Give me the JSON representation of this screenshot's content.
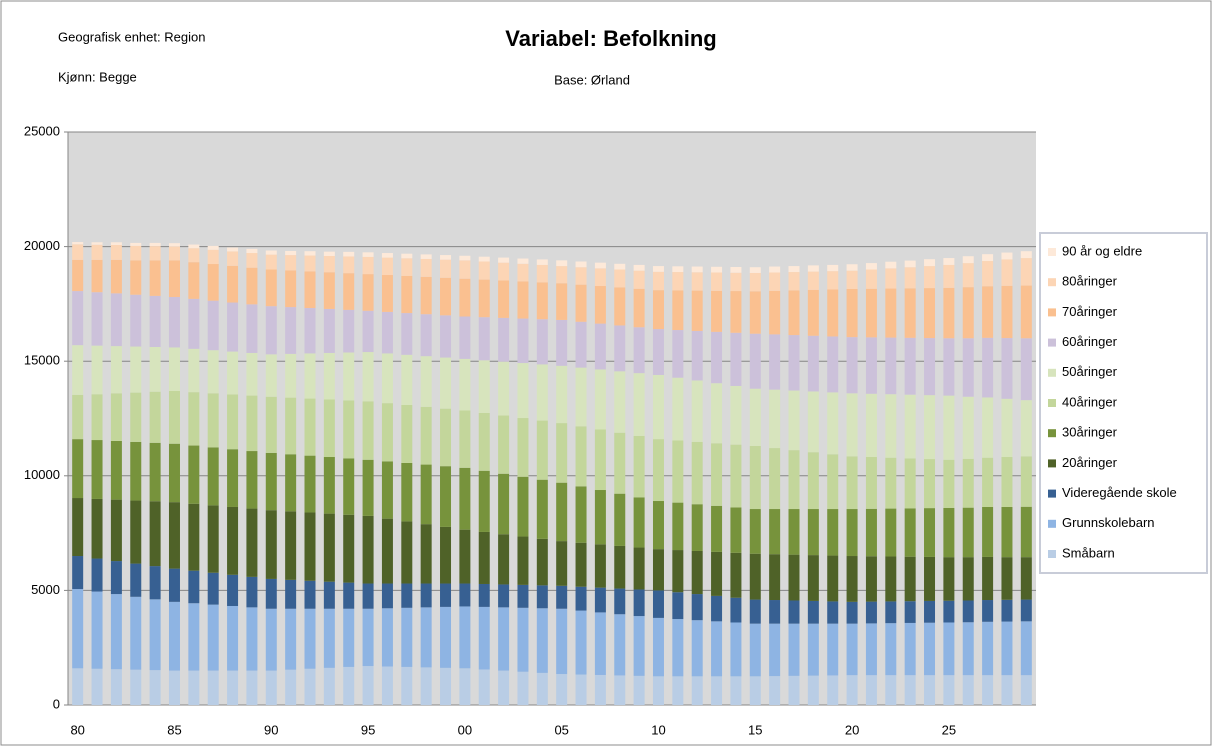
{
  "chart_data": {
    "type": "stacked-bar",
    "title": "Variabel: Befolkning",
    "annotations": [
      "Geografisk enhet: Region",
      "Kjønn: Begge",
      "Base: Ørland"
    ],
    "categories": [
      "80",
      null,
      null,
      null,
      null,
      "85",
      null,
      null,
      null,
      null,
      "90",
      null,
      null,
      null,
      null,
      "95",
      null,
      null,
      null,
      null,
      "00",
      null,
      null,
      null,
      null,
      "05",
      null,
      null,
      null,
      null,
      "10",
      null,
      null,
      null,
      null,
      "15",
      null,
      null,
      null,
      null,
      "20",
      null,
      null,
      null,
      null,
      "25",
      null,
      null,
      null,
      null
    ],
    "ylim": [
      0,
      25000
    ],
    "yticks": [
      0,
      5000,
      10000,
      15000,
      20000,
      25000
    ],
    "grid": true,
    "legend": "right",
    "series": [
      {
        "name": "Småbarn",
        "color": "#b9cde5",
        "values": [
          1600,
          1580,
          1560,
          1540,
          1520,
          1500,
          1500,
          1500,
          1500,
          1500,
          1500,
          1540,
          1580,
          1620,
          1660,
          1700,
          1680,
          1660,
          1640,
          1620,
          1600,
          1550,
          1500,
          1450,
          1400,
          1350,
          1330,
          1310,
          1290,
          1270,
          1250,
          1250,
          1250,
          1250,
          1250,
          1250,
          1260,
          1270,
          1280,
          1290,
          1300,
          1300,
          1300,
          1300,
          1300,
          1300,
          1300,
          1300,
          1300,
          1300
        ]
      },
      {
        "name": "Grunnskolebarn",
        "color": "#8eb4e3",
        "values": [
          3460,
          3370,
          3280,
          3180,
          3090,
          3000,
          2940,
          2880,
          2820,
          2760,
          2700,
          2660,
          2620,
          2580,
          2540,
          2500,
          2540,
          2580,
          2620,
          2660,
          2700,
          2730,
          2760,
          2790,
          2820,
          2850,
          2790,
          2730,
          2670,
          2610,
          2550,
          2500,
          2450,
          2400,
          2350,
          2300,
          2290,
          2280,
          2270,
          2260,
          2250,
          2260,
          2270,
          2280,
          2290,
          2300,
          2310,
          2330,
          2340,
          2350
        ]
      },
      {
        "name": "Videregående skole",
        "color": "#376092",
        "values": [
          1440,
          1440,
          1440,
          1450,
          1450,
          1450,
          1420,
          1390,
          1360,
          1330,
          1300,
          1260,
          1220,
          1180,
          1140,
          1100,
          1080,
          1060,
          1040,
          1020,
          1000,
          1000,
          1000,
          1000,
          1000,
          1000,
          1040,
          1080,
          1120,
          1160,
          1200,
          1170,
          1140,
          1110,
          1080,
          1050,
          1030,
          1010,
          990,
          970,
          950,
          950,
          950,
          950,
          950,
          950,
          950,
          950,
          950,
          950
        ]
      },
      {
        "name": "20åringer",
        "color": "#4f6228",
        "values": [
          2530,
          2600,
          2680,
          2750,
          2830,
          2900,
          2920,
          2940,
          2960,
          2980,
          3000,
          2990,
          2980,
          2970,
          2960,
          2950,
          2830,
          2710,
          2590,
          2470,
          2350,
          2270,
          2190,
          2110,
          2030,
          1950,
          1920,
          1890,
          1860,
          1830,
          1800,
          1840,
          1880,
          1920,
          1960,
          2000,
          2000,
          2000,
          2000,
          2000,
          2000,
          1980,
          1960,
          1940,
          1920,
          1900,
          1890,
          1880,
          1860,
          1850
        ]
      },
      {
        "name": "30åringer",
        "color": "#77933c",
        "values": [
          2570,
          2570,
          2560,
          2560,
          2550,
          2550,
          2540,
          2530,
          2520,
          2510,
          2500,
          2490,
          2480,
          2470,
          2460,
          2450,
          2500,
          2550,
          2600,
          2650,
          2700,
          2670,
          2640,
          2610,
          2580,
          2550,
          2460,
          2370,
          2280,
          2190,
          2100,
          2070,
          2040,
          2010,
          1980,
          1950,
          1970,
          1990,
          2010,
          2030,
          2050,
          2070,
          2090,
          2110,
          2130,
          2150,
          2160,
          2180,
          2190,
          2200
        ]
      },
      {
        "name": "40åringer",
        "color": "#c3d69b",
        "values": [
          1930,
          2000,
          2080,
          2150,
          2230,
          2300,
          2330,
          2360,
          2390,
          2420,
          2450,
          2470,
          2490,
          2510,
          2530,
          2550,
          2540,
          2530,
          2520,
          2510,
          2500,
          2520,
          2540,
          2560,
          2580,
          2600,
          2620,
          2640,
          2660,
          2680,
          2700,
          2710,
          2720,
          2730,
          2740,
          2750,
          2660,
          2570,
          2480,
          2390,
          2300,
          2260,
          2220,
          2180,
          2140,
          2100,
          2130,
          2150,
          2180,
          2200
        ]
      },
      {
        "name": "50åringer",
        "color": "#d7e4bd",
        "values": [
          2170,
          2120,
          2060,
          2010,
          1950,
          1900,
          1890,
          1880,
          1870,
          1860,
          1850,
          1910,
          1970,
          2030,
          2090,
          2150,
          2170,
          2190,
          2210,
          2230,
          2250,
          2300,
          2350,
          2400,
          2450,
          2500,
          2560,
          2620,
          2680,
          2740,
          2800,
          2740,
          2680,
          2620,
          2560,
          2500,
          2550,
          2600,
          2650,
          2700,
          2750,
          2760,
          2770,
          2780,
          2790,
          2800,
          2710,
          2630,
          2540,
          2450
        ]
      },
      {
        "name": "60åringer",
        "color": "#ccc1da",
        "values": [
          2360,
          2330,
          2300,
          2260,
          2230,
          2200,
          2180,
          2160,
          2140,
          2120,
          2100,
          2040,
          1980,
          1920,
          1860,
          1800,
          1810,
          1820,
          1830,
          1840,
          1850,
          1880,
          1910,
          1940,
          1970,
          2000,
          2000,
          2000,
          2000,
          2000,
          2000,
          2080,
          2160,
          2240,
          2320,
          2400,
          2410,
          2420,
          2430,
          2440,
          2450,
          2460,
          2470,
          2480,
          2490,
          2500,
          2550,
          2600,
          2650,
          2700
        ]
      },
      {
        "name": "70åringer",
        "color": "#fac090",
        "values": [
          1360,
          1410,
          1460,
          1500,
          1550,
          1600,
          1600,
          1600,
          1600,
          1600,
          1600,
          1600,
          1600,
          1600,
          1600,
          1600,
          1610,
          1620,
          1630,
          1640,
          1650,
          1640,
          1630,
          1620,
          1610,
          1600,
          1620,
          1640,
          1660,
          1680,
          1700,
          1730,
          1760,
          1790,
          1820,
          1850,
          1900,
          1950,
          2000,
          2050,
          2100,
          2120,
          2140,
          2160,
          2180,
          2200,
          2230,
          2250,
          2280,
          2300
        ]
      },
      {
        "name": "80åringer",
        "color": "#fcd5b5",
        "values": [
          680,
          660,
          650,
          630,
          620,
          600,
          610,
          620,
          630,
          640,
          650,
          670,
          690,
          710,
          730,
          750,
          760,
          770,
          780,
          790,
          800,
          790,
          780,
          770,
          760,
          750,
          760,
          770,
          780,
          790,
          800,
          800,
          800,
          800,
          800,
          800,
          800,
          800,
          800,
          800,
          800,
          840,
          880,
          920,
          960,
          1000,
          1050,
          1100,
          1150,
          1200
        ]
      },
      {
        "name": "90 år og eldre",
        "color": "#fde9d9",
        "values": [
          100,
          110,
          120,
          130,
          140,
          150,
          160,
          170,
          170,
          180,
          180,
          180,
          190,
          190,
          200,
          200,
          200,
          200,
          200,
          200,
          200,
          210,
          220,
          230,
          240,
          250,
          250,
          250,
          250,
          250,
          250,
          250,
          250,
          250,
          250,
          250,
          260,
          260,
          270,
          270,
          280,
          280,
          290,
          290,
          300,
          300,
          300,
          300,
          300,
          300
        ]
      }
    ]
  }
}
